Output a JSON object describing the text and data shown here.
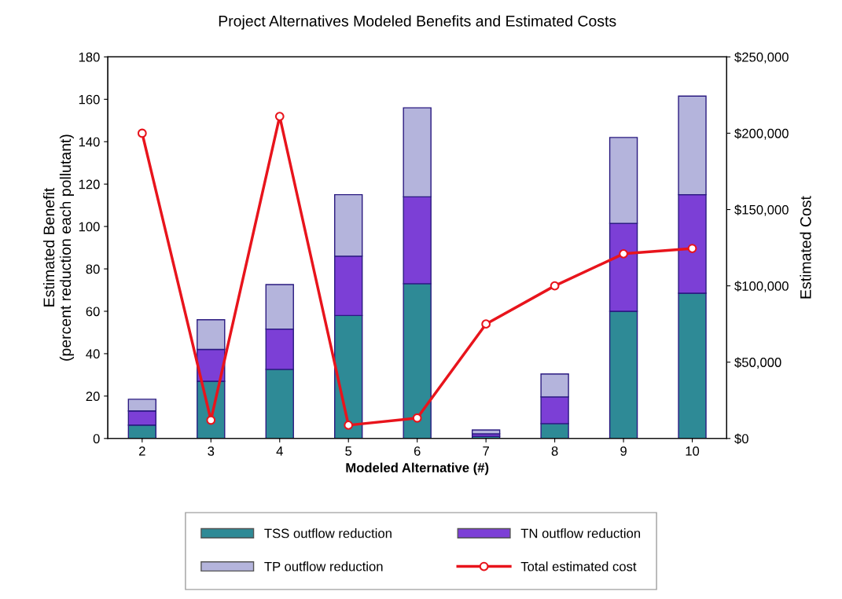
{
  "chart_data": {
    "type": "bar",
    "title": "Project Alternatives Modeled Benefits and Estimated Costs",
    "xlabel": "Modeled Alternative (#)",
    "ylabel": "Estimated Benefit\n(percent reduction each pollutant)",
    "y2label": "Estimated Cost",
    "categories": [
      "2",
      "3",
      "4",
      "5",
      "6",
      "7",
      "8",
      "9",
      "10"
    ],
    "stacked": true,
    "series": [
      {
        "name": "TSS outflow reduction",
        "color": "#2e8a96",
        "values": [
          6.3,
          27,
          32.6,
          58,
          73,
          1,
          7,
          60,
          68.5
        ]
      },
      {
        "name": "TN outflow reduction",
        "color": "#7c3fd6",
        "values": [
          6.7,
          15,
          19,
          28,
          41,
          1.2,
          12.6,
          41.5,
          46.5
        ]
      },
      {
        "name": "TP outflow reduction",
        "color": "#b4b4dc",
        "values": [
          5.5,
          14,
          21,
          29,
          42,
          1.8,
          10.8,
          40.5,
          46.5
        ]
      },
      {
        "name": "Total estimated cost",
        "type": "line",
        "axis": "y2",
        "color": "#e8141c",
        "marker": "circle",
        "values": [
          200000,
          12000,
          211000,
          8700,
          13400,
          75000,
          100000,
          121000,
          124500
        ]
      }
    ],
    "ylim": [
      0,
      180
    ],
    "yticks": [
      0,
      20,
      40,
      60,
      80,
      100,
      120,
      140,
      160,
      180
    ],
    "y2lim": [
      0,
      250000
    ],
    "y2ticks": [
      {
        "value": 0,
        "label": "$0"
      },
      {
        "value": 50000,
        "label": "$50,000"
      },
      {
        "value": 100000,
        "label": "$100,000"
      },
      {
        "value": 150000,
        "label": "$150,000"
      },
      {
        "value": 200000,
        "label": "$200,000"
      },
      {
        "value": 250000,
        "label": "$250,000"
      }
    ],
    "grid": false,
    "legend": "bottom"
  }
}
